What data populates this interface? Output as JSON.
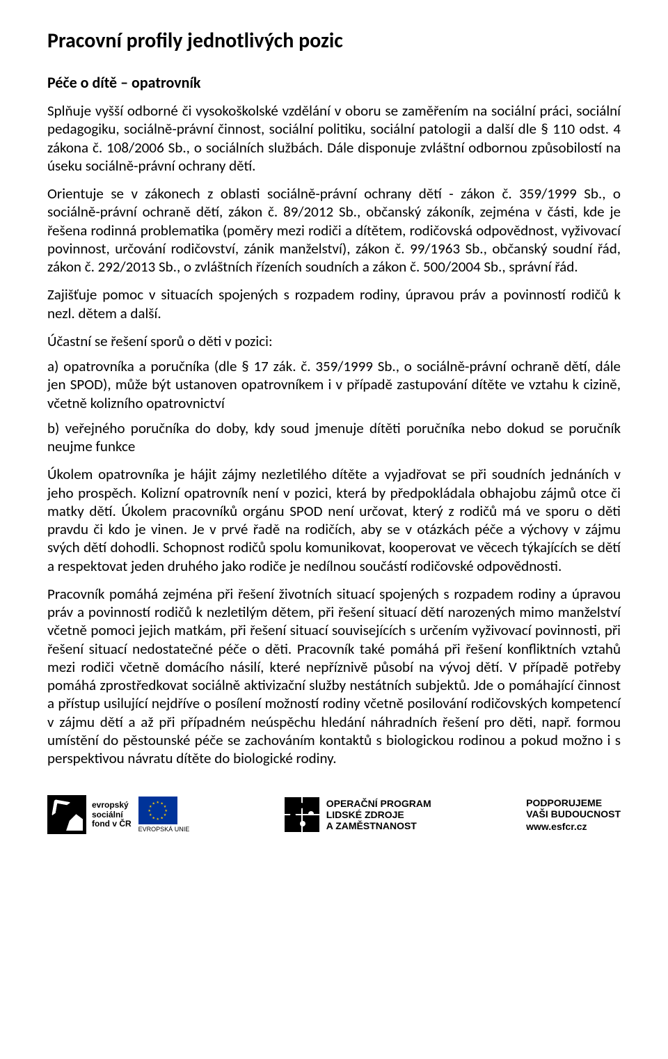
{
  "title": "Pracovní profily jednotlivých pozic",
  "subtitle": "Péče o dítě – opatrovník",
  "paragraphs": {
    "p1": "Splňuje vyšší odborné či vysokoškolské vzdělání v oboru se zaměřením na sociální práci, sociální pedagogiku, sociálně-právní činnost, sociální politiku, sociální patologii a další dle § 110 odst. 4 zákona č. 108/2006 Sb., o sociálních službách. Dále disponuje zvláštní odbornou způsobilostí na úseku sociálně-právní ochrany dětí.",
    "p2": "Orientuje se v zákonech z oblasti sociálně-právní ochrany dětí - zákon č. 359/1999 Sb., o sociálně-právní ochraně dětí, zákon č. 89/2012 Sb., občanský zákoník, zejména v části, kde je řešena rodinná problematika (poměry mezi rodiči a dítětem, rodičovská odpovědnost, vyživovací povinnost, určování rodičovství, zánik manželství), zákon č. 99/1963 Sb., občanský soudní řád, zákon č. 292/2013 Sb., o zvláštních řízeních soudních a zákon č. 500/2004 Sb., správní řád.",
    "p3": "Zajišťuje pomoc v situacích spojených s rozpadem rodiny, úpravou práv a povinností rodičů k nezl. dětem a další.",
    "p4": "Účastní se řešení sporů o děti v pozici:",
    "p5": "a)  opatrovníka a poručníka (dle § 17 zák. č. 359/1999 Sb., o sociálně-právní ochraně dětí, dále jen SPOD), může být ustanoven opatrovníkem i v případě zastupování dítěte ve vztahu k cizině, včetně kolizního opatrovnictví",
    "p6": "b)  veřejného poručníka do doby, kdy soud jmenuje dítěti poručníka nebo dokud se poručník neujme funkce",
    "p7": "Úkolem opatrovníka je hájit zájmy nezletilého dítěte a vyjadřovat se při soudních jednáních v jeho prospěch. Kolizní opatrovník není v pozici, která by předpokládala obhajobu zájmů otce či matky dětí. Úkolem pracovníků orgánu SPOD není určovat, který z rodičů má ve sporu o děti pravdu či kdo je vinen. Je v prvé řadě na rodičích, aby se v otázkách péče a výchovy v zájmu svých dětí dohodli. Schopnost rodičů spolu komunikovat, kooperovat ve věcech týkajících se dětí a respektovat jeden druhého jako rodiče je nedílnou součástí rodičovské odpovědnosti.",
    "p8": "Pracovník pomáhá zejména při řešení životních situací spojených s rozpadem rodiny a úpravou práv a povinností rodičů k nezletilým dětem, při řešení situací dětí narozených mimo manželství včetně pomoci jejich matkám, při řešení situací souvisejících s určením vyživovací povinnosti, při řešení situací nedostatečné péče o děti. Pracovník také pomáhá při řešení konfliktních vztahů mezi rodiči včetně domácího násilí, které nepříznivě působí na vývoj dětí. V případě potřeby pomáhá zprostředkovat sociálně aktivizační služby nestátních subjektů. Jde o pomáhající činnost a přístup usilující nejdříve o posílení možností rodiny včetně posilování rodičovských kompetencí v zájmu dětí a až při případném neúspěchu hledání náhradních řešení pro děti, např. formou umístění do pěstounské péče se zachováním kontaktů s biologickou rodinou a pokud možno i s perspektivou návratu dítěte do biologické rodiny."
  },
  "footer": {
    "esf": {
      "line1": "evropský",
      "line2": "sociální",
      "line3": "fond v ČR",
      "eu": "EVROPSKÁ UNIE"
    },
    "op": {
      "line1": "OPERAČNÍ PROGRAM",
      "line2": "LIDSKÉ ZDROJE",
      "line3": "A ZAMĚSTNANOST"
    },
    "support": {
      "line1": "PODPORUJEME",
      "line2": "VAŠI BUDOUCNOST",
      "url": "www.esfcr.cz"
    }
  }
}
